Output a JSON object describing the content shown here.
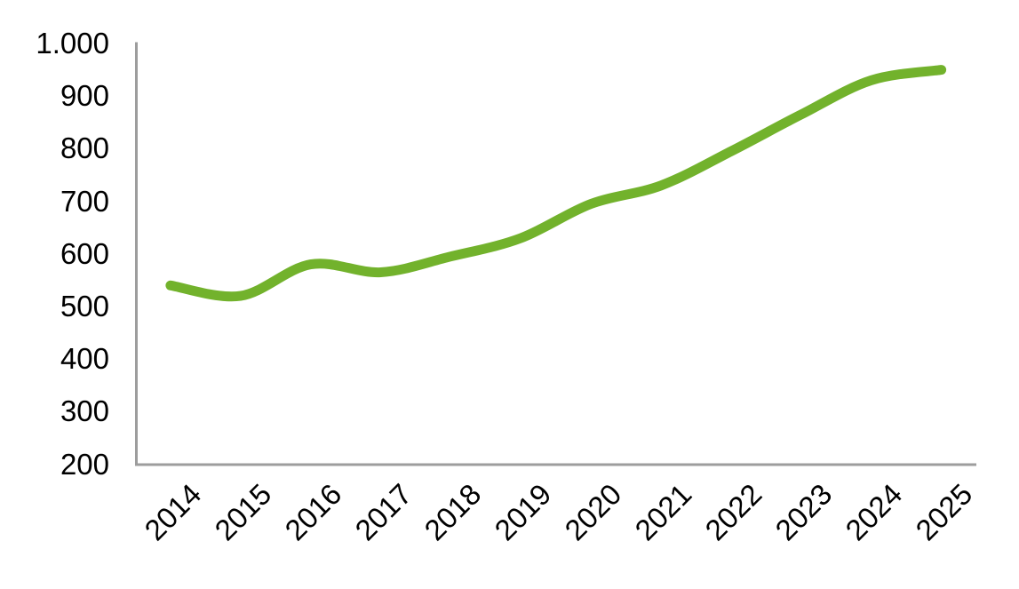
{
  "chart_data": {
    "type": "line",
    "title": "",
    "categories": [
      "2014",
      "2015",
      "2016",
      "2017",
      "2018",
      "2019",
      "2020",
      "2021",
      "2022",
      "2023",
      "2024",
      "2025"
    ],
    "series": [
      {
        "name": "",
        "values": [
          540,
          520,
          580,
          565,
          595,
          630,
          695,
          730,
          795,
          865,
          930,
          950
        ]
      }
    ],
    "xlabel": "",
    "ylabel": "",
    "ylim": [
      200,
      1000
    ],
    "y_tick_interval": 100,
    "y_ticks": [
      {
        "label": "1.000",
        "value": 1000
      },
      {
        "label": "900",
        "value": 900
      },
      {
        "label": "800",
        "value": 800
      },
      {
        "label": "700",
        "value": 700
      },
      {
        "label": "600",
        "value": 600
      },
      {
        "label": "500",
        "value": 500
      },
      {
        "label": "400",
        "value": 400
      },
      {
        "label": "300",
        "value": 300
      },
      {
        "label": "200",
        "value": 200
      }
    ],
    "grid": "off",
    "legend": "none",
    "line_smooth": true,
    "x_label_rotation_deg": 45
  },
  "colors": {
    "line": "#72B22C",
    "axis": "#9D9D9D",
    "text": "#000000",
    "background": "#FFFFFF"
  }
}
